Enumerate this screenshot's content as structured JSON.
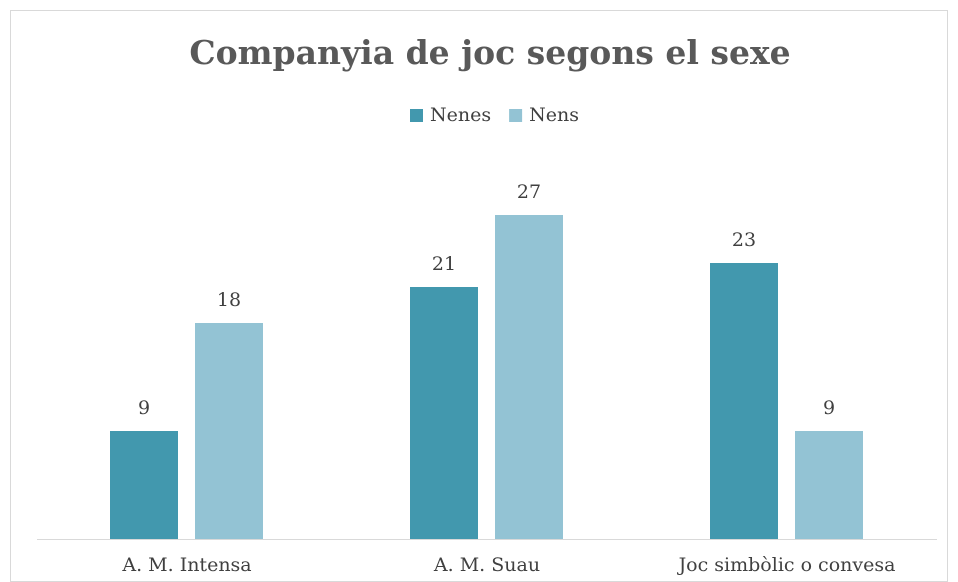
{
  "chart_data": {
    "type": "bar",
    "title": "Companyia de joc segons el sexe",
    "categories": [
      "A. M. Intensa",
      "A. M. Suau",
      "Joc simbòlic o convesa"
    ],
    "series": [
      {
        "name": "Nenes",
        "color": "#4298ae",
        "values": [
          9,
          21,
          23
        ]
      },
      {
        "name": "Nens",
        "color": "#93c3d4",
        "values": [
          18,
          27,
          9
        ]
      }
    ],
    "ylim": [
      0,
      30
    ],
    "legend": "top"
  }
}
